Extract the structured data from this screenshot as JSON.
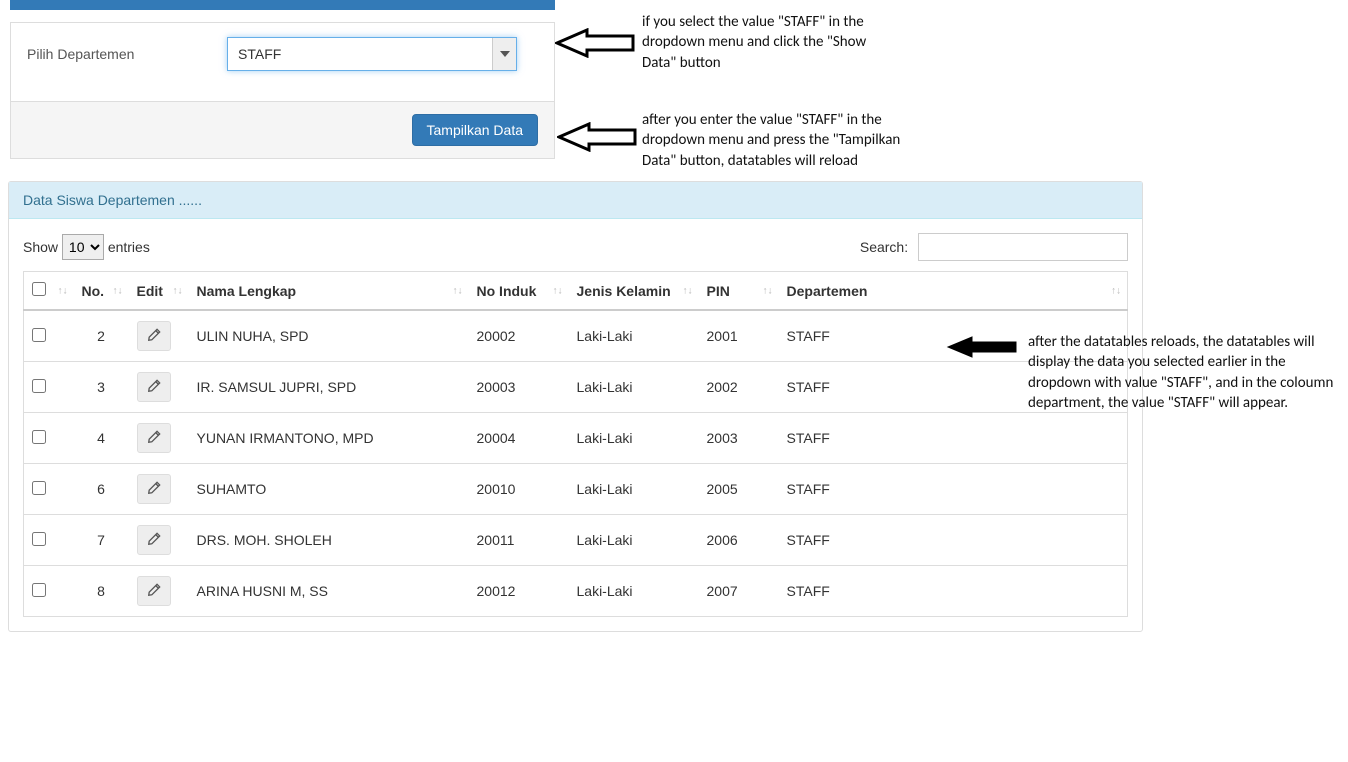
{
  "filter": {
    "label": "Pilih Departemen",
    "dropdown_value": "STAFF",
    "button_label": "Tampilkan Data"
  },
  "panel": {
    "heading": "Data Siswa Departemen ......"
  },
  "tableControls": {
    "show_label": "Show",
    "entries_label": "entries",
    "entries_value": "10",
    "search_label": "Search:",
    "search_value": ""
  },
  "columns": [
    "",
    "No.",
    "Edit",
    "Nama Lengkap",
    "No Induk",
    "Jenis Kelamin",
    "PIN",
    "Departemen"
  ],
  "rows": [
    {
      "no": "2",
      "nama": "ULIN NUHA, SPD",
      "induk": "20002",
      "kelamin": "Laki-Laki",
      "pin": "2001",
      "dept": "STAFF"
    },
    {
      "no": "3",
      "nama": "IR. SAMSUL JUPRI, SPD",
      "induk": "20003",
      "kelamin": "Laki-Laki",
      "pin": "2002",
      "dept": "STAFF"
    },
    {
      "no": "4",
      "nama": "YUNAN IRMANTONO, MPD",
      "induk": "20004",
      "kelamin": "Laki-Laki",
      "pin": "2003",
      "dept": "STAFF"
    },
    {
      "no": "6",
      "nama": "SUHAMTO",
      "induk": "20010",
      "kelamin": "Laki-Laki",
      "pin": "2005",
      "dept": "STAFF"
    },
    {
      "no": "7",
      "nama": "DRS. MOH. SHOLEH",
      "induk": "20011",
      "kelamin": "Laki-Laki",
      "pin": "2006",
      "dept": "STAFF"
    },
    {
      "no": "8",
      "nama": "ARINA HUSNI M, SS",
      "induk": "20012",
      "kelamin": "Laki-Laki",
      "pin": "2007",
      "dept": "STAFF"
    }
  ],
  "annotations": {
    "a1": "if you select the value \"STAFF\" in the dropdown menu and click the \"Show Data\" button",
    "a2": "after you enter the value \"STAFF\" in the dropdown menu and press the \"Tampilkan Data\" button, datatables will reload",
    "a3": "after the datatables reloads, the datatables will display the data you selected earlier in the dropdown with value \"STAFF\", and in the coloumn department, the value \"STAFF\" will appear."
  },
  "colors": {
    "primary": "#337ab7",
    "panel_heading_bg": "#d9edf7",
    "panel_heading_text": "#31708f",
    "border": "#ddd",
    "focus_border": "#66afe9"
  }
}
